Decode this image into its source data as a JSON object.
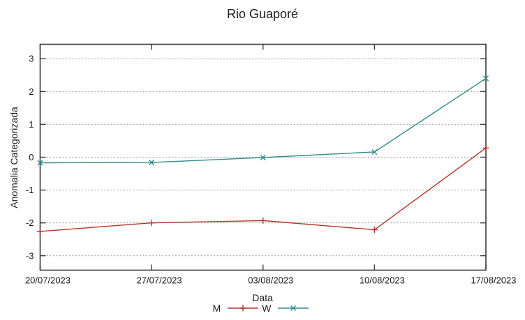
{
  "chart_data": {
    "type": "line",
    "title": "Rio Guaporé",
    "xlabel": "Data",
    "ylabel": "Anomalia Categorizada",
    "categories": [
      "20/07/2023",
      "27/07/2023",
      "03/08/2023",
      "10/08/2023",
      "17/08/2023"
    ],
    "series": [
      {
        "name": "M",
        "color": "#b0352c",
        "marker": "plus",
        "values": [
          -2.26,
          -2.0,
          -1.93,
          -2.21,
          0.28
        ]
      },
      {
        "name": "W",
        "color": "#2e8b8b",
        "marker": "cross",
        "values": [
          -0.17,
          -0.16,
          -0.01,
          0.16,
          2.4
        ]
      }
    ],
    "yticks": [
      -3,
      -2,
      -1,
      0,
      1,
      2,
      3
    ],
    "ylim": [
      -3.44,
      3.44
    ],
    "grid": "horizontal-dotted",
    "grid_color": "#9a9a9a",
    "border_color": "#3a3a3a",
    "legend_position": "bottom-center"
  }
}
